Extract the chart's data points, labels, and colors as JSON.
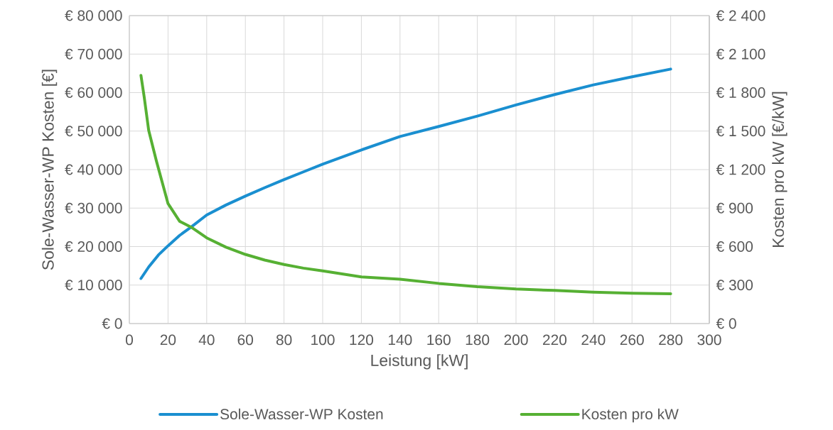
{
  "chart_data": {
    "type": "line",
    "xlabel": "Leistung [kW]",
    "ylabel": "Sole-Wasser-WP Kosten [€]",
    "y2label": "Kosten pro kW [€/kW]",
    "xlim": [
      0,
      300
    ],
    "xticks": [
      0,
      20,
      40,
      60,
      80,
      100,
      120,
      140,
      160,
      180,
      200,
      220,
      240,
      260,
      280,
      300
    ],
    "ylim": [
      0,
      80000
    ],
    "yticks": [
      {
        "value": 0,
        "label": "€ 0"
      },
      {
        "value": 10000,
        "label": "€ 10 000"
      },
      {
        "value": 20000,
        "label": "€ 20 000"
      },
      {
        "value": 30000,
        "label": "€ 30 000"
      },
      {
        "value": 40000,
        "label": "€ 40 000"
      },
      {
        "value": 50000,
        "label": "€ 50 000"
      },
      {
        "value": 60000,
        "label": "€ 60 000"
      },
      {
        "value": 70000,
        "label": "€ 70 000"
      },
      {
        "value": 80000,
        "label": "€ 80 000"
      }
    ],
    "y2lim": [
      0,
      2400
    ],
    "y2ticks": [
      {
        "value": 0,
        "label": "€ 0"
      },
      {
        "value": 300,
        "label": "€ 300"
      },
      {
        "value": 600,
        "label": "€ 600"
      },
      {
        "value": 900,
        "label": "€ 900"
      },
      {
        "value": 1200,
        "label": "€ 1 200"
      },
      {
        "value": 1500,
        "label": "€ 1 500"
      },
      {
        "value": 1800,
        "label": "€ 1 800"
      },
      {
        "value": 2100,
        "label": "€ 2 100"
      },
      {
        "value": 2400,
        "label": "€ 2 400"
      }
    ],
    "grid": true,
    "legend": "bottom",
    "marker": "none",
    "line_style": "solid",
    "series": [
      {
        "name": "Sole-Wasser-WP Kosten",
        "color": "#1a8fd0",
        "x": [
          6,
          10,
          15,
          20,
          26,
          32,
          40,
          50,
          60,
          70,
          80,
          90,
          100,
          120,
          140,
          160,
          180,
          200,
          220,
          240,
          260,
          280
        ],
        "values": [
          11700,
          14700,
          17800,
          20200,
          22900,
          25100,
          28200,
          30800,
          33100,
          35300,
          37400,
          39400,
          41400,
          45100,
          48600,
          51200,
          53900,
          56800,
          59500,
          62000,
          64100,
          66100
        ]
      },
      {
        "name": "Kosten pro kW",
        "color": "#56b033",
        "axis": "y2",
        "x": [
          6,
          7.7,
          10,
          14,
          20,
          26,
          32,
          40,
          50,
          60,
          70,
          80,
          90,
          100,
          120,
          140,
          160,
          180,
          200,
          220,
          240,
          260,
          280
        ],
        "values": [
          1934,
          1763,
          1506,
          1266,
          935,
          797,
          751,
          668,
          595,
          539,
          495,
          460,
          432,
          410,
          364,
          346,
          313,
          287,
          269,
          258,
          245,
          236,
          232
        ]
      }
    ]
  }
}
